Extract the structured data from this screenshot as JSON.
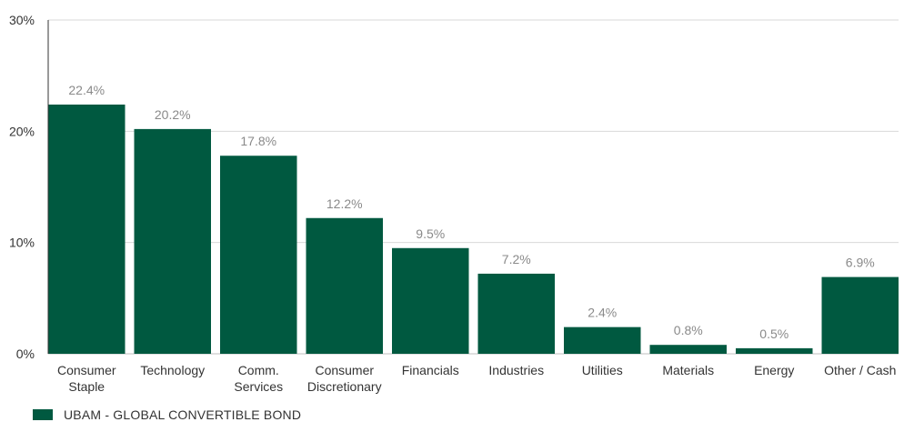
{
  "chart_data": {
    "type": "bar",
    "categories": [
      "Consumer\nStaple",
      "Technology",
      "Comm.\nServices",
      "Consumer\nDiscretionary",
      "Financials",
      "Industries",
      "Utilities",
      "Materials",
      "Energy",
      "Other / Cash"
    ],
    "series": [
      {
        "name": "UBAM - GLOBAL CONVERTIBLE BOND",
        "values": [
          22.4,
          20.2,
          17.8,
          12.2,
          9.5,
          7.2,
          2.4,
          0.8,
          0.5,
          6.9
        ],
        "data_labels": [
          "22.4%",
          "20.2%",
          "17.8%",
          "12.2%",
          "9.5%",
          "7.2%",
          "2.4%",
          "0.8%",
          "0.5%",
          "6.9%"
        ]
      }
    ],
    "ylim": [
      0,
      30
    ],
    "yticks": [
      0,
      10,
      20,
      30
    ],
    "ytick_labels": [
      "0%",
      "10%",
      "20%",
      "30%"
    ],
    "grid": true,
    "legend_position": "bottom-left",
    "colors": {
      "bar": "#005940",
      "grid": "#d9d9d9",
      "axis": "#333333",
      "data_label": "#8a8a8a"
    }
  }
}
